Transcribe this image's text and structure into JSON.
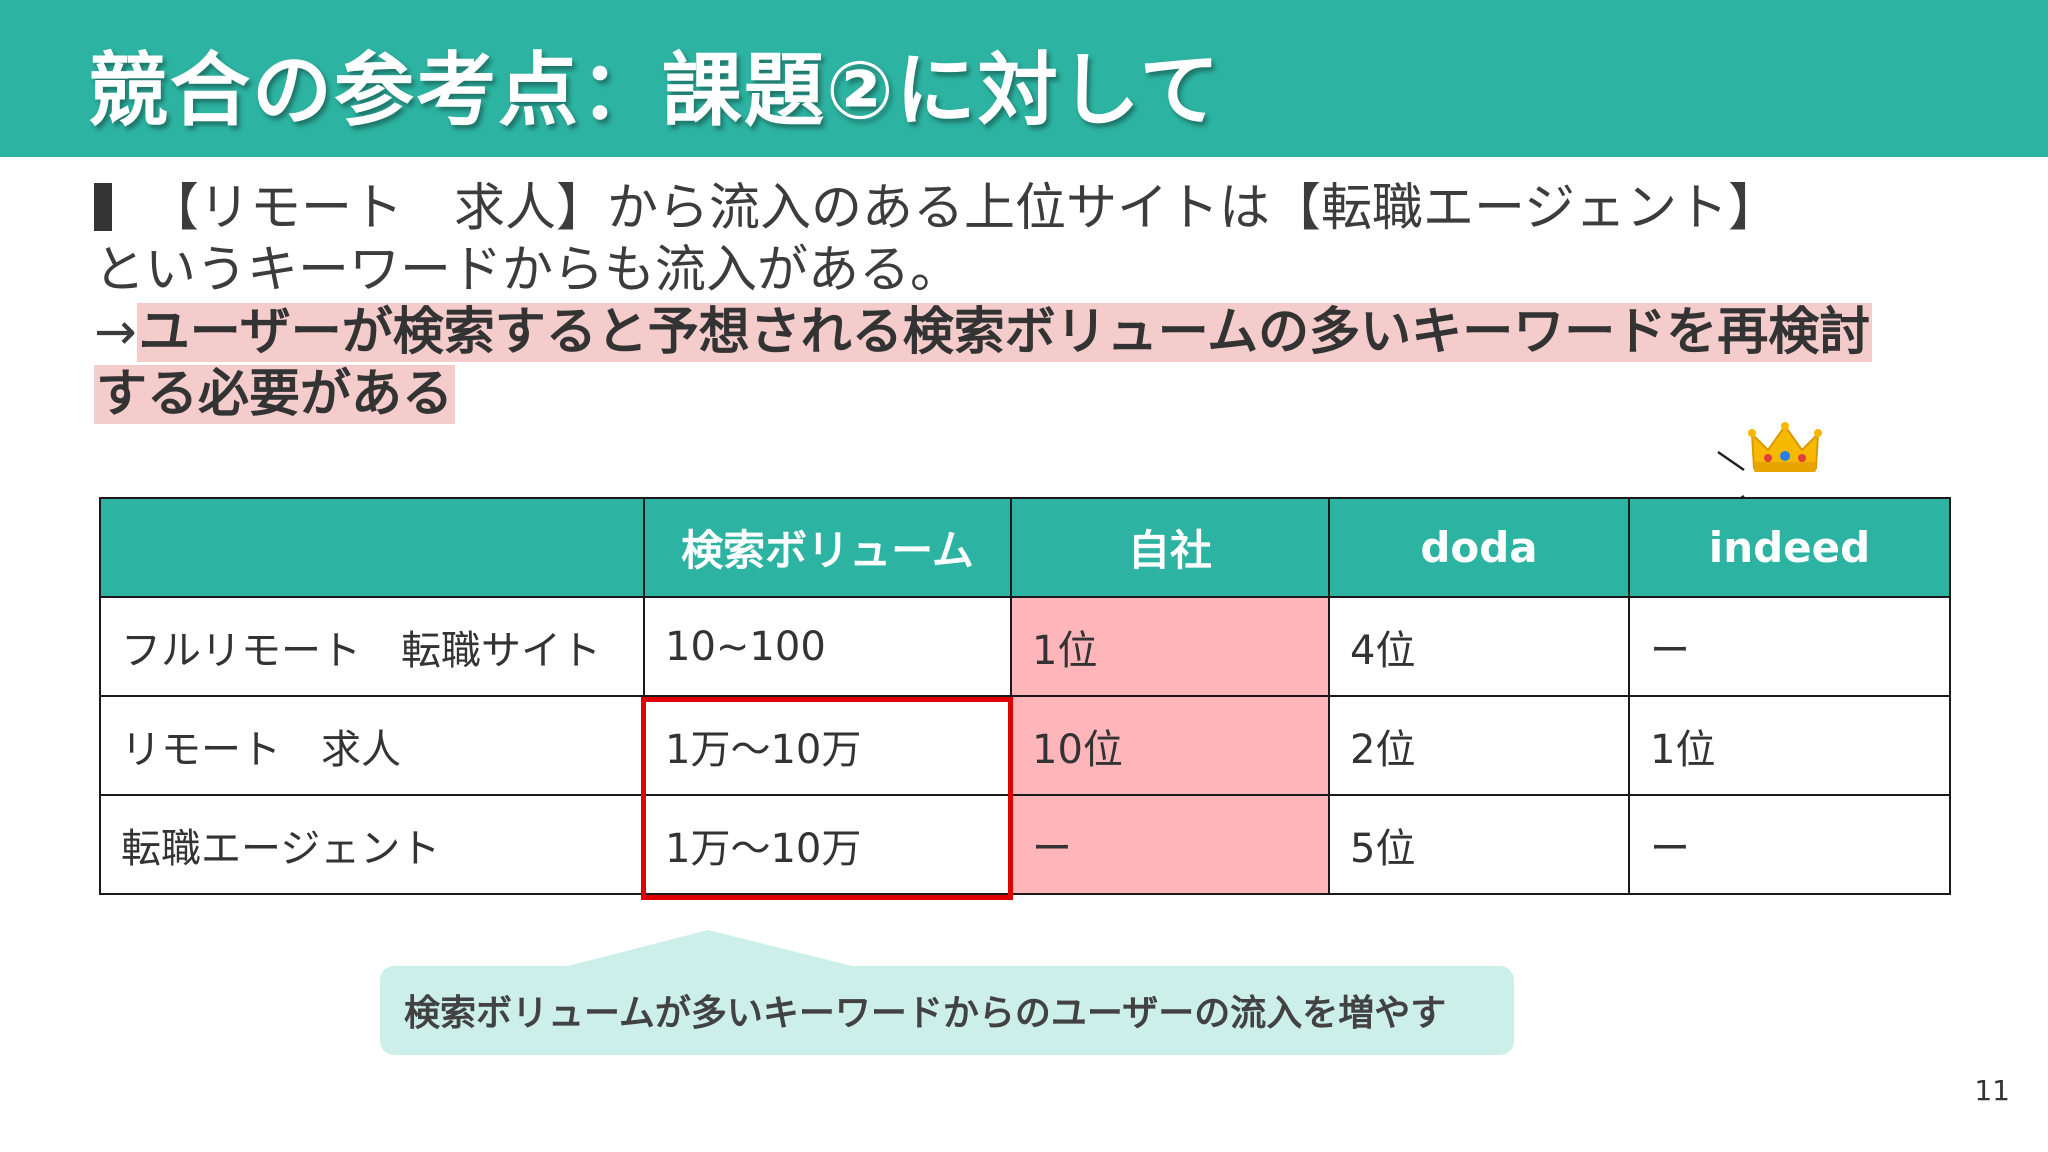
{
  "title": "競合の参考点：課題②に対して",
  "body": {
    "line1": "【リモート　求人】から流入のある上位サイトは【転職エージェント】",
    "line2": "というキーワードからも流入がある。",
    "arrow": "→",
    "highlight1": "ユーザーが検索すると予想される検索ボリュームの多いキーワードを再検討",
    "highlight2": "する必要がある"
  },
  "table": {
    "headers": [
      "",
      "検索ボリューム",
      "自社",
      "doda",
      "indeed"
    ],
    "rows": [
      [
        "フルリモート　転職サイト",
        "10~100",
        "1位",
        "4位",
        "ー"
      ],
      [
        "リモート　求人",
        "1万～10万",
        "10位",
        "2位",
        "1位"
      ],
      [
        "転職エージェント",
        "1万～10万",
        "ー",
        "5位",
        "ー"
      ]
    ]
  },
  "callout": "検索ボリュームが多いキーワードからのユーザーの流入を増やす",
  "page_number": "11",
  "colors": {
    "teal": "#2db3a1",
    "highlight_pink": "#f4cccc",
    "cell_pink": "#ffb6bb",
    "callout_bg": "#ccefea",
    "red_border": "#e00000"
  },
  "icons": [
    "crown-icon"
  ]
}
